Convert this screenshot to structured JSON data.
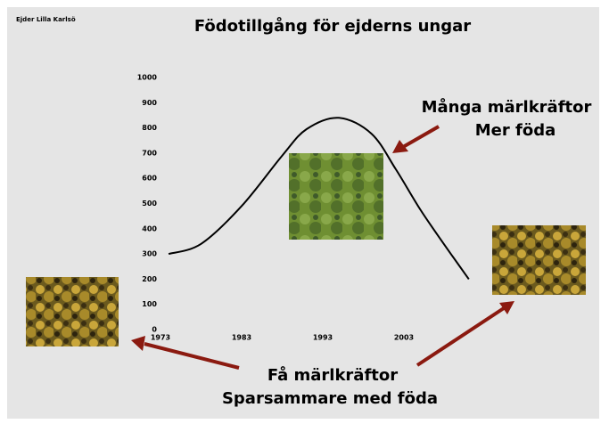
{
  "chart_data": {
    "type": "line",
    "corner_label": "Ejder Lilla Karlsö",
    "title": "Födotillgång för ejderns ungar",
    "annotations": [
      "Många märlkräftor",
      "Mer föda",
      "Få märlkräftor",
      "Sparsammare med föda"
    ],
    "x": [
      1974,
      1978,
      1983,
      1988,
      1991,
      1995,
      1999,
      2002,
      2005,
      2008,
      2011
    ],
    "values": [
      300,
      340,
      490,
      690,
      795,
      840,
      777,
      636,
      477,
      336,
      200
    ],
    "color": "#000000",
    "xlim": [
      1973,
      2013
    ],
    "xticks": [
      1973,
      1983,
      1993,
      2003
    ],
    "ylim": [
      0,
      1000
    ],
    "yticks": [
      0,
      100,
      200,
      300,
      400,
      500,
      600,
      700,
      800,
      900,
      1000
    ],
    "grid": false
  }
}
